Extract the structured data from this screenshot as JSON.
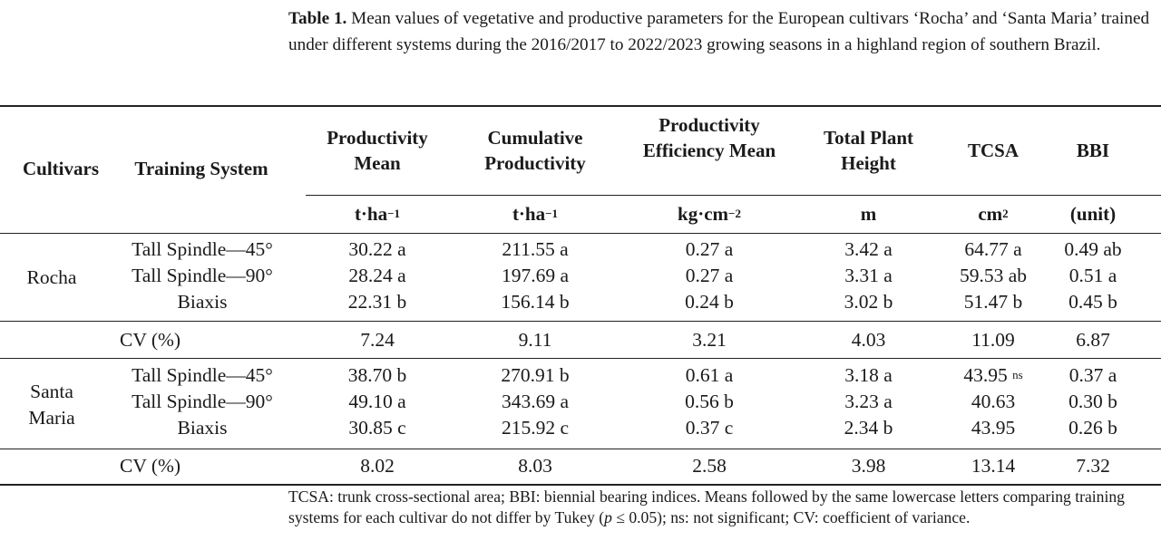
{
  "caption": {
    "label": "Table 1.",
    "text": " Mean values of vegetative and productive parameters for the European cultivars ‘Rocha’ and ‘Santa Maria’ trained under different systems during the 2016/2017 to 2022/2023 growing seasons in a highland region of southern Brazil."
  },
  "headers": {
    "cultivars": "Cultivars",
    "training_system": "Training System",
    "productivity_mean": "Productivity Mean",
    "cumulative_productivity": "Cumulative Productivity",
    "productivity_efficiency_mean": "Productivity Efficiency Mean",
    "total_plant_height": "Total Plant Height",
    "tcsa": "TCSA",
    "bbi": "BBI"
  },
  "units": {
    "productivity_mean": "t·ha",
    "productivity_mean_exp": "−1",
    "cumulative_productivity": "t·ha",
    "cumulative_productivity_exp": "−1",
    "productivity_efficiency": "kg·cm",
    "productivity_efficiency_exp": "−2",
    "height": "m",
    "tcsa": "cm",
    "tcsa_exp": "2",
    "bbi": "(unit)"
  },
  "groups": [
    {
      "cultivar": "Rocha",
      "rows": [
        {
          "system": "Tall Spindle—45°",
          "prod": "30.22 a",
          "cum": "211.55 a",
          "eff": "0.27 a",
          "height": "3.42 a",
          "tcsa": "64.77 a",
          "bbi": "0.49 ab"
        },
        {
          "system": "Tall Spindle—90°",
          "prod": "28.24 a",
          "cum": "197.69 a",
          "eff": "0.27 a",
          "height": "3.31 a",
          "tcsa": "59.53 ab",
          "bbi": "0.51 a"
        },
        {
          "system": "Biaxis",
          "prod": "22.31 b",
          "cum": "156.14 b",
          "eff": "0.24 b",
          "height": "3.02 b",
          "tcsa": "51.47 b",
          "bbi": "0.45 b"
        }
      ],
      "cv": {
        "label": "CV (%)",
        "prod": "7.24",
        "cum": "9.11",
        "eff": "3.21",
        "height": "4.03",
        "tcsa": "11.09",
        "bbi": "6.87"
      }
    },
    {
      "cultivar_line1": "Santa",
      "cultivar_line2": "Maria",
      "rows": [
        {
          "system": "Tall Spindle—45°",
          "prod": "38.70 b",
          "cum": "270.91 b",
          "eff": "0.61 a",
          "height": "3.18 a",
          "tcsa": "43.95",
          "tcsa_sup": "ns",
          "bbi": "0.37 a"
        },
        {
          "system": "Tall Spindle—90°",
          "prod": "49.10 a",
          "cum": "343.69 a",
          "eff": "0.56 b",
          "height": "3.23 a",
          "tcsa": "40.63",
          "bbi": "0.30 b"
        },
        {
          "system": "Biaxis",
          "prod": "30.85 c",
          "cum": "215.92 c",
          "eff": "0.37 c",
          "height": "2.34 b",
          "tcsa": "43.95",
          "bbi": "0.26 b"
        }
      ],
      "cv": {
        "label": "CV (%)",
        "prod": "8.02",
        "cum": "8.03",
        "eff": "2.58",
        "height": "3.98",
        "tcsa": "13.14",
        "bbi": "7.32"
      }
    }
  ],
  "footnote": {
    "part1": "TCSA: trunk cross-sectional area; BBI: biennial bearing indices. Means followed by the same lowercase letters comparing training systems for each cultivar do not differ by Tukey (",
    "p": "p",
    "part2": " ≤ 0.05); ns: not significant; CV: coefficient of variance."
  }
}
